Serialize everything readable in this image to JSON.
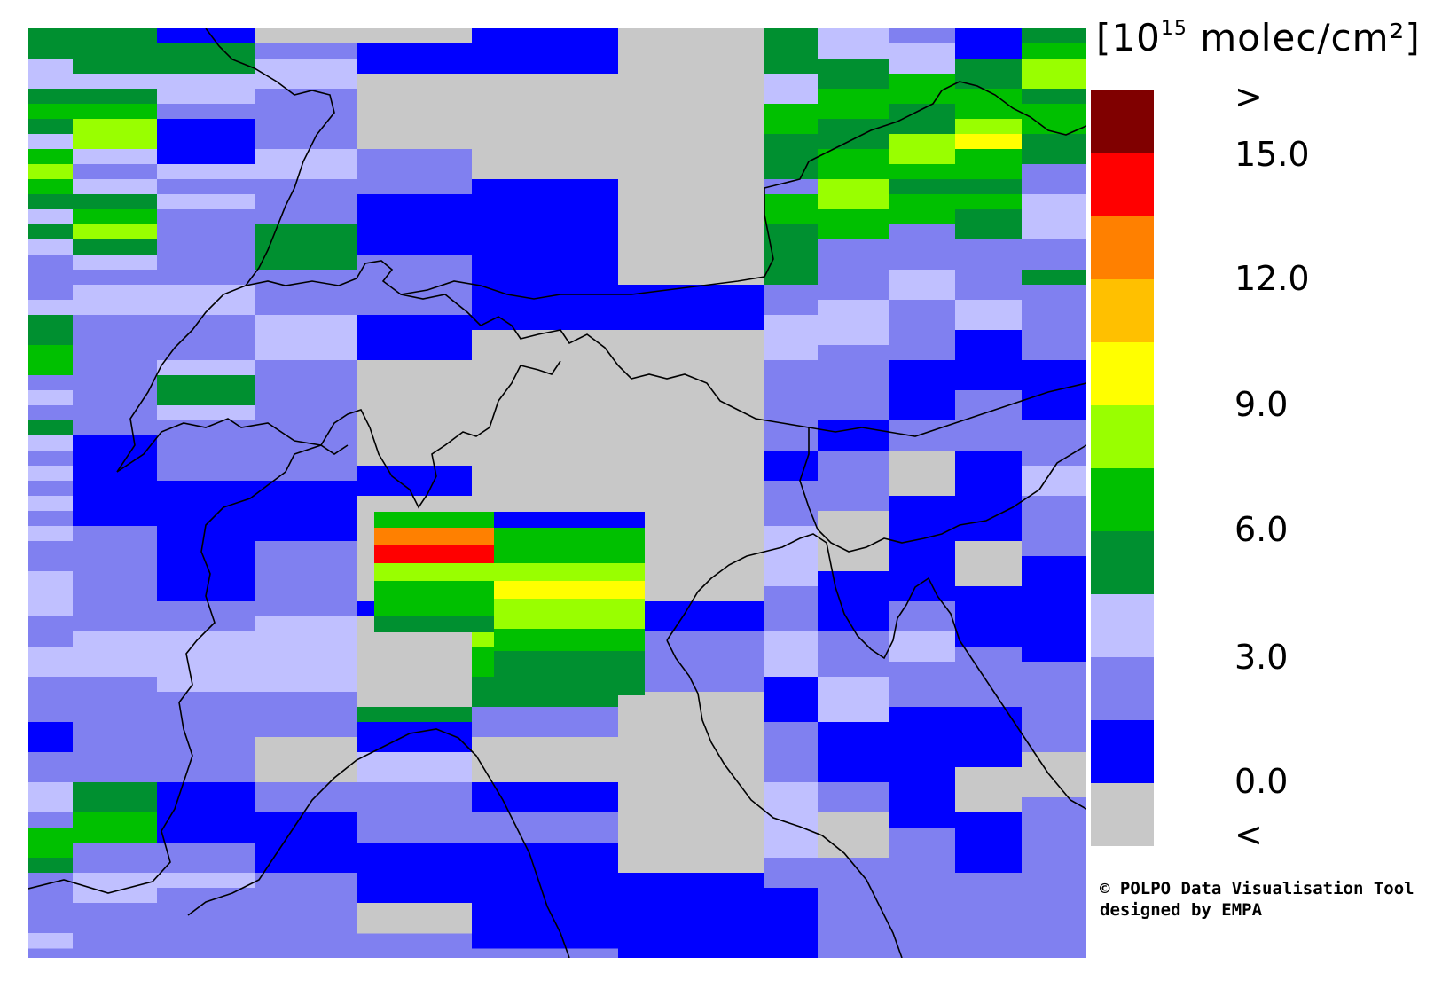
{
  "legend": {
    "unit_prefix": "[10",
    "unit_exp": "15",
    "unit_suffix": " molec/cm²]",
    "ticks": [
      ">",
      "15.0",
      "12.0",
      "9.0",
      "6.0",
      "3.0",
      "0.0",
      "<"
    ],
    "bins": [
      {
        "label": "over",
        "color": "#800000"
      },
      {
        "label": "15.0-16.5",
        "color": "#ff0000"
      },
      {
        "label": "13.5-15.0",
        "color": "#ff8000"
      },
      {
        "label": "12.0-13.5",
        "color": "#ffc000"
      },
      {
        "label": "10.5-12.0",
        "color": "#ffff00"
      },
      {
        "label": "9.0-10.5",
        "color": "#99ff00"
      },
      {
        "label": "7.5-9.0",
        "color": "#00c000"
      },
      {
        "label": "6.0-7.5",
        "color": "#009030"
      },
      {
        "label": "4.5-6.0",
        "color": "#c0c0ff"
      },
      {
        "label": "3.0-4.5",
        "color": "#8080f0"
      },
      {
        "label": "1.5-3.0",
        "color": "#0000ff"
      },
      {
        "label": "under",
        "color": "#c8c8c8"
      }
    ]
  },
  "credit": {
    "line1": "© POLPO Data Visualisation Tool",
    "line2": "designed by EMPA"
  }
}
